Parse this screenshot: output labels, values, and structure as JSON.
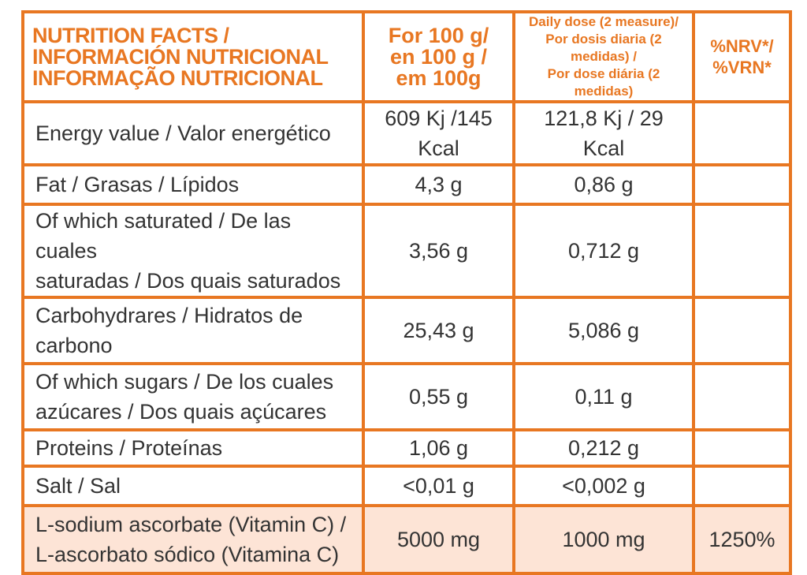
{
  "colors": {
    "accent": "#e87722",
    "highlight": "#fde4d6",
    "text": "#333333"
  },
  "header": {
    "title_lines": [
      "NUTRITION FACTS /",
      "INFORMACIÓN NUTRICIONAL",
      "INFORMAÇÃO NUTRICIONAL"
    ],
    "per100_lines": [
      "For 100 g/",
      "en 100 g /",
      "em 100g"
    ],
    "daily_lines": [
      "Daily dose (2 measure)/",
      "Por dosis diaria (2 medidas) /",
      "Por dose diária (2 medidas)"
    ],
    "nrv_lines": [
      "%NRV*/",
      "%VRN*"
    ]
  },
  "rows": [
    {
      "name_lines": [
        "Energy value / Valor energético"
      ],
      "per100": "609 Kj /145 Kcal",
      "daily": "121,8 Kj / 29 Kcal",
      "nrv": ""
    },
    {
      "name_lines": [
        "Fat / Grasas / Lípidos"
      ],
      "per100": "4,3 g",
      "daily": "0,86 g",
      "nrv": ""
    },
    {
      "name_lines": [
        "Of which saturated / De las cuales",
        "saturadas / Dos quais saturados"
      ],
      "per100": "3,56 g",
      "daily": "0,712 g",
      "nrv": ""
    },
    {
      "name_lines": [
        "Carbohydrares / Hidratos de",
        "carbono"
      ],
      "per100": "25,43 g",
      "daily": "5,086 g",
      "nrv": ""
    },
    {
      "name_lines": [
        "Of which  sugars / De los cuales",
        "azúcares / Dos quais açúcares"
      ],
      "per100": "0,55 g",
      "daily": "0,11 g",
      "nrv": ""
    },
    {
      "name_lines": [
        "Proteins / Proteínas"
      ],
      "per100": "1,06 g",
      "daily": "0,212 g",
      "nrv": ""
    },
    {
      "name_lines": [
        "Salt / Sal"
      ],
      "per100": "<0,01 g",
      "daily": "<0,002  g",
      "nrv": ""
    },
    {
      "name_lines": [
        "L-sodium ascorbate (Vitamin C) /",
        "L-ascorbato sódico (Vitamina C)"
      ],
      "per100": "5000 mg",
      "daily": "1000 mg",
      "nrv": "1250%",
      "highlight": true
    }
  ]
}
